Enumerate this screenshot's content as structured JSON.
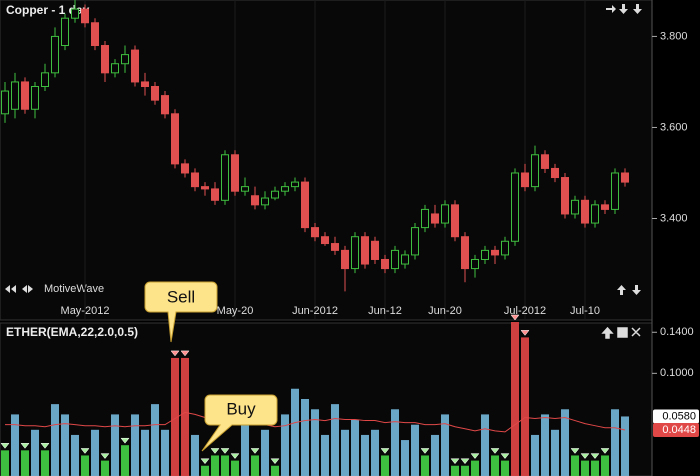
{
  "chart_data": [
    {
      "type": "candlestick",
      "title": "Copper - 1 day",
      "watermark": "MotiveWave",
      "up_color": "#3fbf3f",
      "down_color": "#e05050",
      "categories": [
        null,
        null,
        null,
        null,
        null,
        null,
        null,
        null,
        "May-2012",
        null,
        null,
        null,
        null,
        null,
        null,
        null,
        null,
        null,
        null,
        null,
        null,
        null,
        null,
        "May-20",
        null,
        null,
        null,
        null,
        null,
        null,
        null,
        "Jun-2012",
        null,
        null,
        null,
        null,
        null,
        null,
        "Jun-12",
        null,
        null,
        null,
        null,
        null,
        "Jun-20",
        null,
        null,
        null,
        null,
        null,
        null,
        null,
        "Jul-2012",
        null,
        null,
        null,
        null,
        null,
        "Jul-10",
        null,
        null,
        null,
        null
      ],
      "open": [
        3.63,
        3.64,
        3.7,
        3.64,
        3.69,
        3.72,
        3.78,
        3.84,
        3.86,
        3.83,
        3.78,
        3.72,
        3.74,
        3.77,
        3.7,
        3.69,
        3.67,
        3.63,
        3.52,
        3.5,
        3.47,
        3.465,
        3.44,
        3.54,
        3.46,
        3.45,
        3.43,
        3.445,
        3.46,
        3.47,
        3.48,
        3.38,
        3.36,
        3.345,
        3.33,
        3.29,
        3.36,
        3.35,
        3.31,
        3.29,
        3.3,
        3.32,
        3.38,
        3.41,
        3.39,
        3.43,
        3.36,
        3.29,
        3.31,
        3.33,
        3.32,
        3.35,
        3.5,
        3.47,
        3.54,
        3.51,
        3.49,
        3.41,
        3.44,
        3.39,
        3.43,
        3.42,
        3.5
      ],
      "close": [
        3.68,
        3.7,
        3.64,
        3.69,
        3.72,
        3.8,
        3.84,
        3.86,
        3.83,
        3.78,
        3.72,
        3.74,
        3.76,
        3.7,
        3.69,
        3.66,
        3.63,
        3.52,
        3.5,
        3.47,
        3.465,
        3.44,
        3.54,
        3.46,
        3.47,
        3.43,
        3.445,
        3.46,
        3.47,
        3.48,
        3.38,
        3.36,
        3.345,
        3.33,
        3.29,
        3.36,
        3.3,
        3.31,
        3.29,
        3.33,
        3.32,
        3.38,
        3.42,
        3.39,
        3.43,
        3.36,
        3.29,
        3.31,
        3.33,
        3.32,
        3.35,
        3.5,
        3.47,
        3.54,
        3.51,
        3.49,
        3.41,
        3.44,
        3.39,
        3.43,
        3.42,
        3.5,
        3.48
      ],
      "high": [
        3.7,
        3.72,
        3.71,
        3.7,
        3.74,
        3.82,
        3.85,
        3.88,
        3.87,
        3.84,
        3.79,
        3.75,
        3.78,
        3.78,
        3.72,
        3.7,
        3.68,
        3.64,
        3.53,
        3.51,
        3.48,
        3.48,
        3.55,
        3.55,
        3.49,
        3.47,
        3.46,
        3.47,
        3.48,
        3.49,
        3.49,
        3.39,
        3.37,
        3.36,
        3.34,
        3.37,
        3.37,
        3.36,
        3.32,
        3.34,
        3.33,
        3.39,
        3.43,
        3.43,
        3.44,
        3.44,
        3.37,
        3.32,
        3.34,
        3.34,
        3.36,
        3.51,
        3.52,
        3.56,
        3.55,
        3.52,
        3.5,
        3.45,
        3.45,
        3.44,
        3.44,
        3.51,
        3.51
      ],
      "low": [
        3.61,
        3.62,
        3.63,
        3.62,
        3.68,
        3.71,
        3.77,
        3.83,
        3.82,
        3.77,
        3.7,
        3.71,
        3.72,
        3.69,
        3.67,
        3.65,
        3.62,
        3.51,
        3.49,
        3.46,
        3.45,
        3.43,
        3.43,
        3.45,
        3.45,
        3.42,
        3.42,
        3.44,
        3.45,
        3.46,
        3.37,
        3.35,
        3.34,
        3.32,
        3.24,
        3.28,
        3.29,
        3.3,
        3.28,
        3.28,
        3.29,
        3.31,
        3.37,
        3.38,
        3.38,
        3.35,
        3.26,
        3.27,
        3.3,
        3.3,
        3.31,
        3.34,
        3.46,
        3.46,
        3.5,
        3.48,
        3.4,
        3.4,
        3.38,
        3.38,
        3.41,
        3.41,
        3.47
      ],
      "ylim": [
        3.21,
        3.88
      ],
      "yticks": [
        {
          "value": 3.4,
          "label": "3.400"
        },
        {
          "value": 3.6,
          "label": "3.600"
        },
        {
          "value": 3.8,
          "label": "3.800"
        }
      ]
    },
    {
      "type": "bar",
      "title": "ETHER(EMA,22,2.0,0.5)",
      "values": [
        0.025,
        0.06,
        0.025,
        0.045,
        0.025,
        0.07,
        0.06,
        0.04,
        0.02,
        0.045,
        0.015,
        0.06,
        0.03,
        0.06,
        0.045,
        0.07,
        0.045,
        0.115,
        0.115,
        0.04,
        0.01,
        0.02,
        0.02,
        0.015,
        0.06,
        0.02,
        0.045,
        0.01,
        0.06,
        0.085,
        0.075,
        0.065,
        0.04,
        0.07,
        0.045,
        0.055,
        0.04,
        0.045,
        0.02,
        0.065,
        0.035,
        0.05,
        0.02,
        0.04,
        0.06,
        0.01,
        0.01,
        0.015,
        0.06,
        0.02,
        0.015,
        0.15,
        0.135,
        0.04,
        0.06,
        0.045,
        0.065,
        0.02,
        0.015,
        0.015,
        0.02,
        0.065,
        0.058
      ],
      "colors": [
        "#3fbf3f",
        "#6aa6c6",
        "#3fbf3f",
        "#6aa6c6",
        "#3fbf3f",
        "#6aa6c6",
        "#6aa6c6",
        "#6aa6c6",
        "#3fbf3f",
        "#6aa6c6",
        "#3fbf3f",
        "#6aa6c6",
        "#3fbf3f",
        "#6aa6c6",
        "#6aa6c6",
        "#6aa6c6",
        "#6aa6c6",
        "#d04040",
        "#d04040",
        "#6aa6c6",
        "#3fbf3f",
        "#3fbf3f",
        "#3fbf3f",
        "#3fbf3f",
        "#6aa6c6",
        "#3fbf3f",
        "#6aa6c6",
        "#3fbf3f",
        "#6aa6c6",
        "#6aa6c6",
        "#6aa6c6",
        "#6aa6c6",
        "#6aa6c6",
        "#6aa6c6",
        "#6aa6c6",
        "#6aa6c6",
        "#6aa6c6",
        "#6aa6c6",
        "#3fbf3f",
        "#6aa6c6",
        "#6aa6c6",
        "#6aa6c6",
        "#3fbf3f",
        "#6aa6c6",
        "#6aa6c6",
        "#3fbf3f",
        "#3fbf3f",
        "#3fbf3f",
        "#6aa6c6",
        "#3fbf3f",
        "#3fbf3f",
        "#d04040",
        "#d04040",
        "#6aa6c6",
        "#6aa6c6",
        "#6aa6c6",
        "#6aa6c6",
        "#3fbf3f",
        "#3fbf3f",
        "#3fbf3f",
        "#3fbf3f",
        "#6aa6c6",
        "#6aa6c6"
      ],
      "buy_color": "#3fbf3f",
      "sell_color": "#d04040",
      "line": {
        "color": "#e04848",
        "values": [
          0.05,
          0.05,
          0.049,
          0.049,
          0.048,
          0.05,
          0.051,
          0.05,
          0.049,
          0.049,
          0.048,
          0.049,
          0.048,
          0.049,
          0.049,
          0.05,
          0.05,
          0.056,
          0.062,
          0.06,
          0.057,
          0.055,
          0.053,
          0.051,
          0.052,
          0.05,
          0.05,
          0.048,
          0.049,
          0.052,
          0.054,
          0.055,
          0.054,
          0.056,
          0.055,
          0.055,
          0.054,
          0.054,
          0.052,
          0.053,
          0.052,
          0.052,
          0.05,
          0.05,
          0.051,
          0.048,
          0.046,
          0.044,
          0.046,
          0.044,
          0.043,
          0.05,
          0.057,
          0.056,
          0.057,
          0.056,
          0.057,
          0.054,
          0.051,
          0.049,
          0.047,
          0.047,
          0.0448
        ]
      },
      "ylim": [
        0,
        0.15
      ],
      "yticks": [
        {
          "value": 0.1,
          "label": "0.1000"
        },
        {
          "value": 0.14,
          "label": "0.1400"
        }
      ],
      "current_labels": [
        {
          "value": 0.058,
          "label": "0.0580",
          "color": "#ffffff",
          "text_color": "#000000"
        },
        {
          "value": 0.0448,
          "label": "0.0448",
          "color": "#e04848",
          "text_color": "#ffffff"
        }
      ],
      "annotations": [
        {
          "text": "Sell"
        },
        {
          "text": "Buy"
        }
      ]
    }
  ]
}
